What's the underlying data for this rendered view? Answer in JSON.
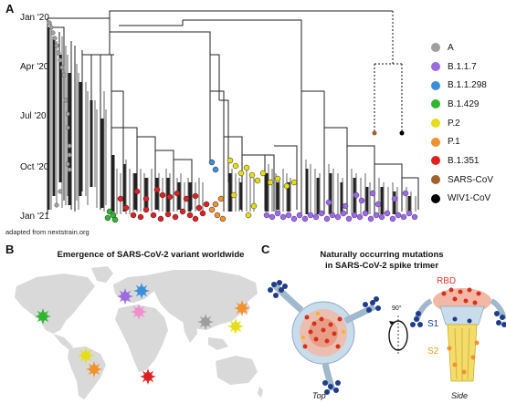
{
  "panelA": {
    "letter": "A",
    "ticks": [
      "Jan '20",
      "Apr '20",
      "Jul '20",
      "Oct '20",
      "Jan '21"
    ],
    "caption": "adapted from nextstrain.org",
    "legend": [
      {
        "label": "A",
        "color": "#9e9e9e"
      },
      {
        "label": "B.1.1.7",
        "color": "#9b6bdf"
      },
      {
        "label": "B.1.1.298",
        "color": "#3a8fd9"
      },
      {
        "label": "B.1.429",
        "color": "#2fb62f"
      },
      {
        "label": "P.2",
        "color": "#e6dd1a"
      },
      {
        "label": "P.1",
        "color": "#f0922e"
      },
      {
        "label": "B.1.351",
        "color": "#e02020"
      },
      {
        "label": "SARS-CoV",
        "color": "#a0622d"
      },
      {
        "label": "WIV1-CoV",
        "color": "#000000"
      }
    ]
  },
  "panelB": {
    "letter": "B",
    "title": "Emergence of SARS-CoV-2 variant worldwide",
    "markers": [
      {
        "variant": "B.1.429",
        "color": "#2fb62f"
      },
      {
        "variant": "B.1.1.7",
        "color": "#9b6bdf"
      },
      {
        "variant": "B.1.1.298",
        "color": "#3a8fd9"
      },
      {
        "variant": "unlabeled-pink",
        "color": "#f08fcf"
      },
      {
        "variant": "A",
        "color": "#9e9e9e"
      },
      {
        "variant": "P.2",
        "color": "#e6dd1a"
      },
      {
        "variant": "P.1",
        "color": "#f0922e"
      },
      {
        "variant": "B.1.351",
        "color": "#e02020"
      },
      {
        "variant": "east-asia-yellow",
        "color": "#e6dd1a"
      },
      {
        "variant": "east-asia-orange",
        "color": "#f0922e"
      }
    ]
  },
  "panelC": {
    "letter": "C",
    "title_line1": "Naturally occurring mutations",
    "title_line2": "in SARS-CoV-2 spike trimer",
    "rotation_label": "90°",
    "rbd_label": "RBD",
    "s1_label": "S1",
    "s2_label": "S2",
    "top_label": "Top",
    "side_label": "Side"
  }
}
